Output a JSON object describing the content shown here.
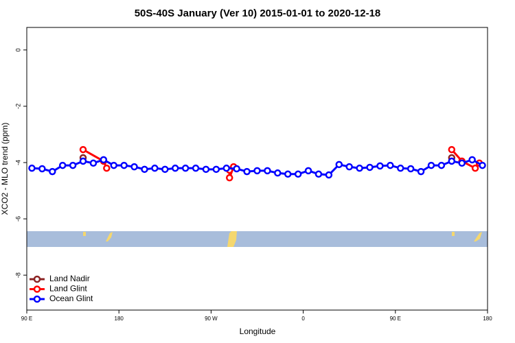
{
  "chart_data": {
    "type": "line",
    "title": "50S-40S January (Ver 10)   2015-01-01 to 2020-12-18",
    "x_label": "Longitude",
    "y_label": "XCO2 - MLO trend (ppm)",
    "xlim": [
      90,
      540
    ],
    "xticks": [
      {
        "value": 90,
        "label": "90 E"
      },
      {
        "value": 180,
        "label": "180"
      },
      {
        "value": 270,
        "label": "90 W"
      },
      {
        "value": 360,
        "label": "0"
      },
      {
        "value": 450,
        "label": "90 E"
      },
      {
        "value": 540,
        "label": "180"
      }
    ],
    "ylim": [
      -9.24,
      0.8
    ],
    "yticks": [
      0,
      -2,
      -4,
      -6,
      -8
    ],
    "legend": "bottom-left",
    "series": [
      {
        "name": "Land Nadir",
        "color": "#8b2323",
        "x": [
          145,
          300,
          505
        ],
        "values": [
          -3.83,
          null,
          -3.83
        ]
      },
      {
        "name": "Land Glint",
        "color": "#ff0000",
        "x": [
          145,
          165,
          168,
          200,
          288,
          288,
          292,
          400,
          505,
          515,
          528,
          532
        ],
        "values": [
          -3.54,
          -3.95,
          -4.2,
          null,
          -4.27,
          -4.54,
          -4.15,
          null,
          -3.54,
          -3.95,
          -4.2,
          -4.02
        ]
      },
      {
        "name": "Ocean Glint",
        "color": "#0000ff",
        "x": [
          95,
          105,
          115,
          125,
          135,
          145,
          155,
          165,
          175,
          185,
          195,
          205,
          215,
          225,
          235,
          245,
          255,
          265,
          275,
          285,
          295,
          305,
          315,
          325,
          335,
          345,
          355,
          365,
          375,
          385,
          395,
          405,
          415,
          425,
          435,
          445,
          455,
          465,
          475,
          485,
          495,
          505,
          515,
          525,
          535
        ],
        "values": [
          -4.2,
          -4.22,
          -4.32,
          -4.1,
          -4.1,
          -3.95,
          -4.02,
          -3.9,
          -4.1,
          -4.1,
          -4.15,
          -4.24,
          -4.2,
          -4.24,
          -4.2,
          -4.2,
          -4.2,
          -4.24,
          -4.24,
          -4.2,
          -4.22,
          -4.32,
          -4.29,
          -4.29,
          -4.37,
          -4.41,
          -4.41,
          -4.29,
          -4.41,
          -4.44,
          -4.07,
          -4.15,
          -4.2,
          -4.17,
          -4.12,
          -4.1,
          -4.2,
          -4.22,
          -4.32,
          -4.1,
          -4.1,
          -3.95,
          -4.02,
          -3.9,
          -4.1
        ]
      }
    ]
  }
}
